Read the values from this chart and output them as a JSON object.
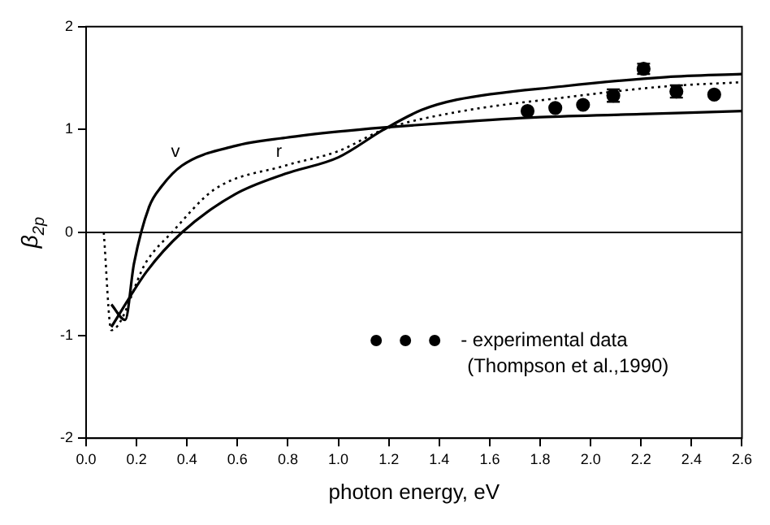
{
  "chart_data": {
    "type": "line",
    "xlabel": "photon energy, eV",
    "ylabel": "β$_{2p}$",
    "xlim": [
      0,
      2.6
    ],
    "xticks": [
      {
        "value": 0,
        "label": "0.0"
      },
      0.2,
      0.4,
      0.6,
      0.8,
      {
        "value": 1,
        "label": "1.0"
      },
      1.2,
      1.4,
      1.6,
      1.8,
      {
        "value": 2,
        "label": "2.0"
      },
      2.2,
      2.4,
      2.6
    ],
    "ylim": [
      -2,
      2
    ],
    "yticks": [
      -2,
      -1,
      0,
      1,
      2
    ],
    "grid": false,
    "legend": "bottom right",
    "line_style": "solid",
    "marker": "none",
    "series": [
      {
        "name": "v",
        "color": "#000000",
        "x": [
          0.1,
          0.155,
          0.19,
          0.25,
          0.3,
          0.38,
          0.59,
          0.79,
          1.0,
          1.18,
          1.4,
          1.8,
          2.2,
          2.6
        ],
        "values": [
          -0.7,
          -0.85,
          -0.3,
          0.25,
          0.45,
          0.65,
          0.84,
          0.92,
          0.98,
          1.02,
          1.06,
          1.12,
          1.15,
          1.18
        ]
      },
      {
        "name": "r",
        "color": "#000000",
        "line_style": "dotted",
        "x": [
          0.07,
          0.1,
          0.24,
          0.34,
          0.51,
          0.79,
          1.0,
          1.18,
          1.47,
          1.89,
          2.3,
          2.6
        ],
        "values": [
          0,
          -0.95,
          -0.28,
          0,
          0.42,
          0.65,
          0.79,
          1.0,
          1.17,
          1.31,
          1.42,
          1.46
        ]
      },
      {
        "color": "#000000",
        "x": [
          0.1,
          0.24,
          0.38,
          0.59,
          0.79,
          1.0,
          1.18,
          1.33,
          1.47,
          1.89,
          2.3,
          2.6
        ],
        "values": [
          -0.92,
          -0.38,
          0,
          0.37,
          0.57,
          0.73,
          1.0,
          1.19,
          1.29,
          1.42,
          1.51,
          1.54
        ]
      },
      {
        "name": "- experimental data",
        "type": "scatter",
        "marker": "circle",
        "color": "#000000",
        "x": [
          1.75,
          1.86,
          1.97,
          2.09,
          2.21,
          2.34,
          2.49
        ],
        "values": [
          1.18,
          1.21,
          1.24,
          1.33,
          1.59,
          1.37,
          1.34
        ],
        "errors": [
          null,
          null,
          null,
          0.06,
          0.05,
          0.06,
          null
        ]
      }
    ],
    "ref_lines": [
      {
        "axis": "y",
        "value": 0,
        "color": "#000000"
      }
    ],
    "annotations": [
      "(Thompson et al.,1990)"
    ]
  }
}
